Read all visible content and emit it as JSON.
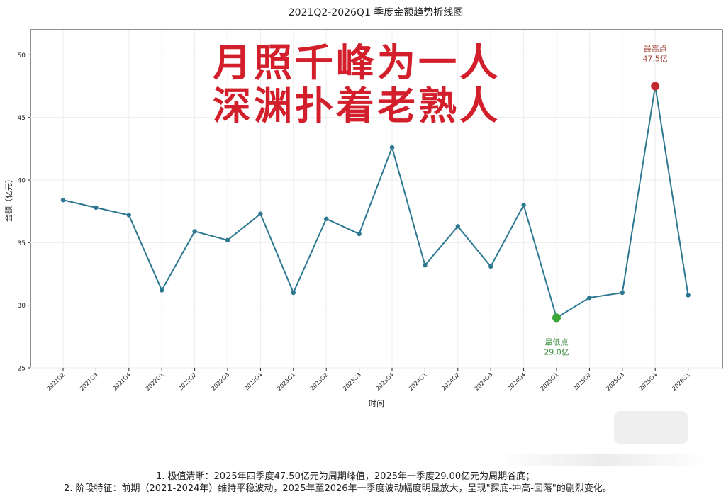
{
  "chart_data": {
    "type": "line",
    "title": "2021Q2-2026Q1 季度金额趋势折线图",
    "xlabel": "时间",
    "ylabel": "金额（亿元）",
    "ylim": [
      25,
      52
    ],
    "yticks": [
      25,
      30,
      35,
      40,
      45,
      50
    ],
    "grid": true,
    "categories": [
      "2021Q2",
      "2021Q3",
      "2021Q4",
      "2022Q1",
      "2022Q2",
      "2022Q3",
      "2022Q4",
      "2023Q1",
      "2023Q2",
      "2023Q3",
      "2023Q4",
      "2024Q1",
      "2024Q2",
      "2024Q3",
      "2024Q4",
      "2025Q1",
      "2025Q2",
      "2025Q3",
      "2025Q4",
      "2026Q1"
    ],
    "series": [
      {
        "values": [
          38.4,
          37.8,
          37.2,
          31.2,
          35.9,
          35.2,
          37.3,
          31.0,
          36.9,
          35.7,
          42.6,
          33.2,
          36.3,
          33.1,
          38.0,
          29.0,
          30.6,
          31.0,
          47.5,
          30.8
        ]
      }
    ],
    "annotations": [
      {
        "type": "max",
        "category": "2025Q4",
        "value": 47.5,
        "label_line1": "最高点",
        "label_line2": "47.5亿"
      },
      {
        "type": "min",
        "category": "2025Q1",
        "value": 29.0,
        "label_line1": "最低点",
        "label_line2": "29.0亿"
      }
    ],
    "colors": {
      "line": "#2d7891",
      "max": "#c0282d",
      "min": "#3aa63a",
      "max_label": "#a0463c",
      "min_label": "#3c8c3c"
    }
  },
  "overlay": {
    "line1": "月照千峰为一人",
    "line2": "深渊扑着老熟人"
  },
  "notes": {
    "line1": "1. 极值清晰：2025年四季度47.50亿元为周期峰值，2025年一季度29.00亿元为周期谷底；",
    "line2": "2. 阶段特征：前期（2021-2024年）维持平稳波动，2025年至2026年一季度波动幅度明显放大，呈现\"探底-冲高-回落\"的剧烈变化。"
  }
}
